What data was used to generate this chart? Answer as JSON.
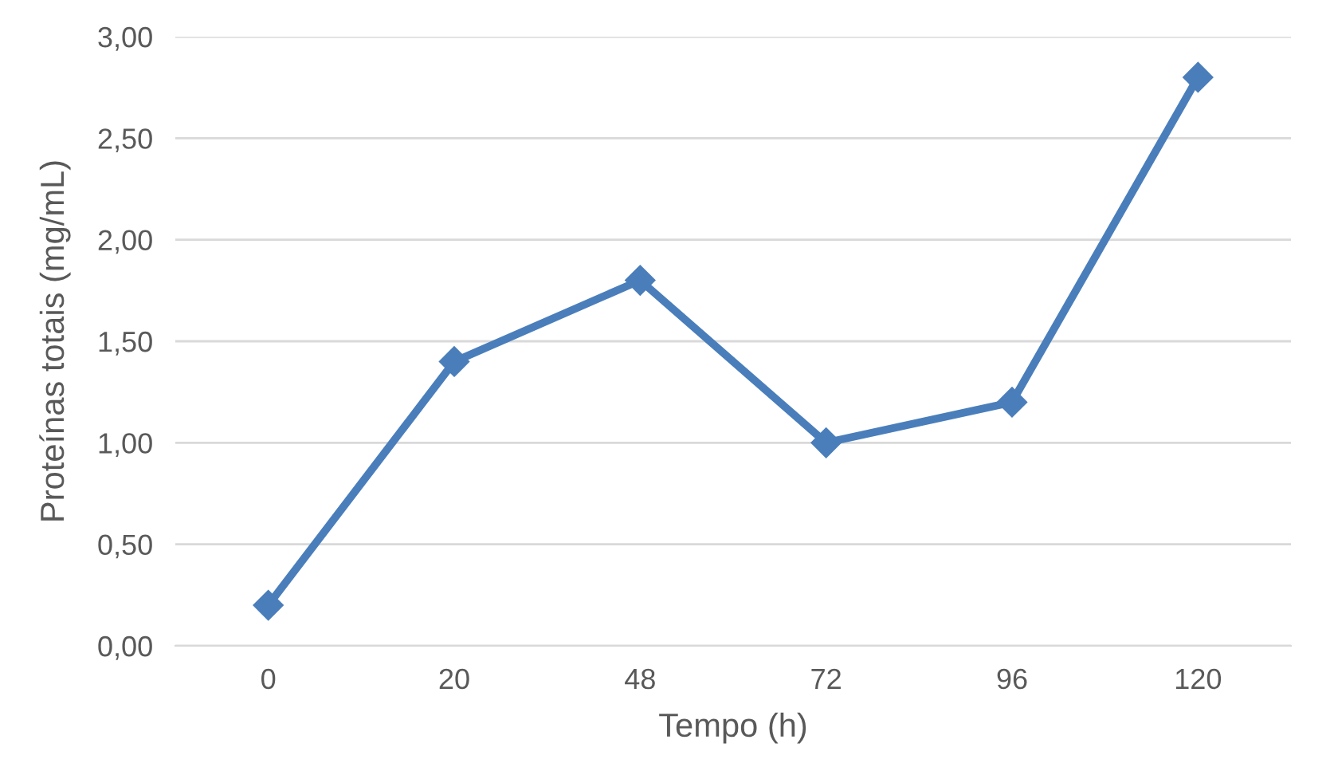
{
  "chart_data": {
    "type": "line",
    "xlabel": "Tempo (h)",
    "ylabel": "Proteínas totais (mg/mL)",
    "categories": [
      "0",
      "20",
      "48",
      "72",
      "96",
      "120"
    ],
    "series": [
      {
        "color": "#4a7ebb",
        "values": [
          0.2,
          1.4,
          1.8,
          1.0,
          1.2,
          2.8
        ]
      }
    ],
    "ylim": [
      0,
      3
    ],
    "yticks": [
      {
        "value": 0,
        "label": "0,00"
      },
      {
        "value": 0.5,
        "label": "0,50"
      },
      {
        "value": 1,
        "label": "1,00"
      },
      {
        "value": 1.5,
        "label": "1,50"
      },
      {
        "value": 2,
        "label": "2,00"
      },
      {
        "value": 2.5,
        "label": "2,50"
      },
      {
        "value": 3,
        "label": "3,00"
      }
    ],
    "grid": "y",
    "marker": "diamond",
    "line_style": "solid",
    "legend": false
  }
}
